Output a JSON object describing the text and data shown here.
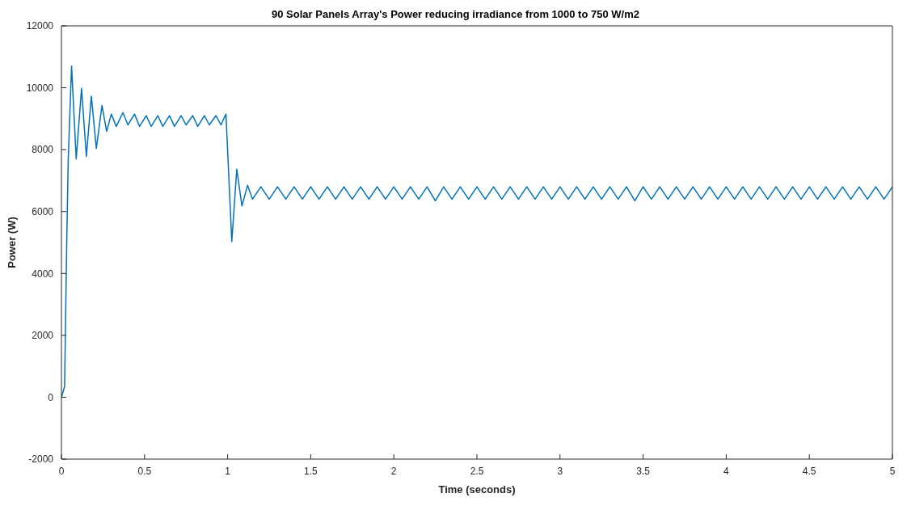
{
  "chart_data": {
    "type": "line",
    "title": "90 Solar Panels Array's Power reducing irradiance from 1000 to 750 W/m2",
    "xlabel": "Time (seconds)",
    "ylabel": "Power (W)",
    "xlim": [
      0,
      5
    ],
    "xticks": [
      0,
      0.5,
      1,
      1.5,
      2,
      2.5,
      3,
      3.5,
      4,
      4.5,
      5
    ],
    "ylim": [
      -2000,
      12000
    ],
    "yticks": [
      -2000,
      0,
      2000,
      4000,
      6000,
      8000,
      10000,
      12000
    ],
    "grid": false,
    "legend": false,
    "marker": "none",
    "line_style": "solid",
    "series": [
      {
        "color": "#0072bd",
        "x": [
          0,
          0.019,
          0.025,
          0.033,
          0.041,
          0.061,
          0.089,
          0.121,
          0.15,
          0.18,
          0.21,
          0.244,
          0.272,
          0.3,
          0.33,
          0.37,
          0.4,
          0.44,
          0.47,
          0.51,
          0.54,
          0.58,
          0.61,
          0.65,
          0.68,
          0.72,
          0.75,
          0.79,
          0.82,
          0.86,
          0.89,
          0.93,
          0.96,
          0.99,
          1.025,
          1.055,
          1.086,
          1.12,
          1.15,
          1.2,
          1.25,
          1.3,
          1.35,
          1.4,
          1.45,
          1.5,
          1.55,
          1.6,
          1.65,
          1.7,
          1.75,
          1.8,
          1.85,
          1.9,
          1.95,
          2,
          2.05,
          2.1,
          2.15,
          2.2,
          2.25,
          2.3,
          2.35,
          2.4,
          2.45,
          2.5,
          2.55,
          2.6,
          2.65,
          2.7,
          2.75,
          2.8,
          2.85,
          2.9,
          2.95,
          3,
          3.05,
          3.1,
          3.15,
          3.2,
          3.25,
          3.3,
          3.35,
          3.4,
          3.45,
          3.5,
          3.55,
          3.6,
          3.65,
          3.7,
          3.75,
          3.8,
          3.85,
          3.9,
          3.95,
          4,
          4.05,
          4.1,
          4.15,
          4.2,
          4.25,
          4.3,
          4.35,
          4.4,
          4.45,
          4.5,
          4.55,
          4.6,
          4.65,
          4.7,
          4.75,
          4.8,
          4.85,
          4.9,
          4.95,
          5
        ],
        "values": [
          0,
          340,
          2540,
          5340,
          7700,
          10700,
          7700,
          9980,
          7780,
          9730,
          8040,
          9430,
          8590,
          9150,
          8750,
          9200,
          8800,
          9150,
          8750,
          9100,
          8750,
          9100,
          8750,
          9100,
          8750,
          9100,
          8800,
          9100,
          8750,
          9100,
          8800,
          9100,
          8800,
          9150,
          5030,
          7370,
          6180,
          6850,
          6400,
          6800,
          6400,
          6800,
          6400,
          6800,
          6400,
          6800,
          6400,
          6800,
          6400,
          6800,
          6400,
          6800,
          6400,
          6800,
          6400,
          6800,
          6400,
          6800,
          6400,
          6800,
          6350,
          6800,
          6400,
          6800,
          6400,
          6800,
          6400,
          6800,
          6400,
          6800,
          6400,
          6800,
          6400,
          6800,
          6400,
          6800,
          6400,
          6800,
          6400,
          6800,
          6400,
          6800,
          6400,
          6800,
          6350,
          6800,
          6400,
          6800,
          6400,
          6800,
          6400,
          6800,
          6400,
          6800,
          6400,
          6800,
          6400,
          6800,
          6400,
          6800,
          6400,
          6800,
          6400,
          6800,
          6400,
          6800,
          6400,
          6800,
          6400,
          6800,
          6400,
          6800,
          6400,
          6800,
          6400,
          6800
        ]
      }
    ]
  }
}
